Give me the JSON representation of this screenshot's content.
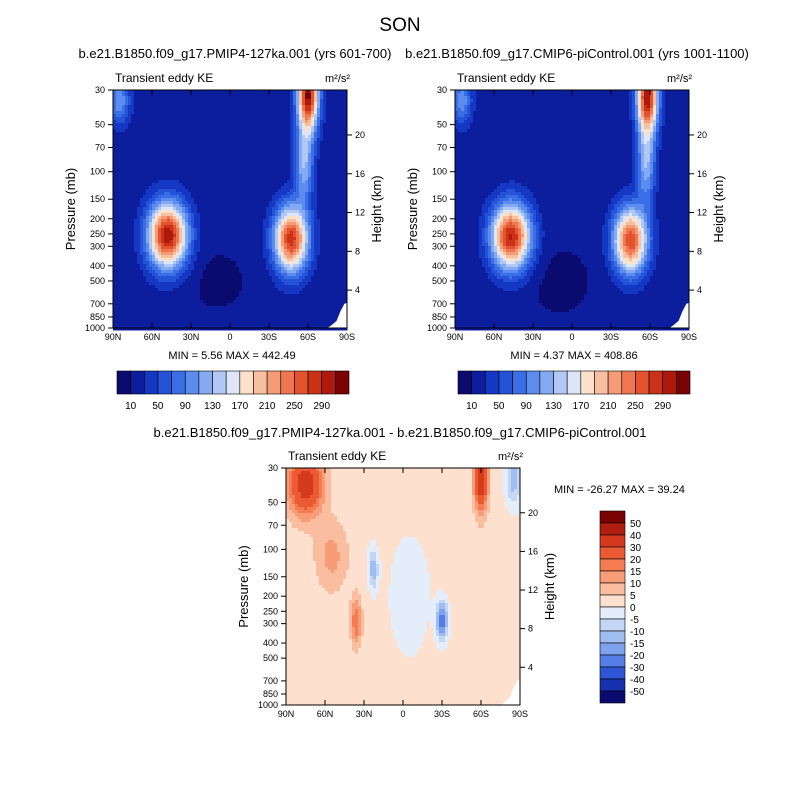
{
  "figure_title": "SON",
  "chart_data": [
    {
      "type": "heatmap",
      "title": "b.e21.B1850.f09_g17.PMIP4-127ka.001 (yrs 601-700)",
      "left_label": "Transient eddy KE",
      "units": "m²/s²",
      "ylabel": "Pressure (mb)",
      "ylabel_right": "Height (km)",
      "x_ticks": [
        "90N",
        "60N",
        "30N",
        "0",
        "30S",
        "60S",
        "90S"
      ],
      "y_ticks": [
        "30",
        "50",
        "70",
        "100",
        "150",
        "200",
        "250",
        "300",
        "400",
        "500",
        "700",
        "850",
        "1000"
      ],
      "height_ticks": [
        "20",
        "16",
        "12",
        "8",
        "4"
      ],
      "x_range": [
        90,
        -90
      ],
      "p_range": [
        30,
        1000
      ],
      "y_scale": "log",
      "stats": "MIN =   5.56  MAX = 442.49",
      "min": 5.56,
      "max": 442.49,
      "features": [
        {
          "lat": 48,
          "p": 255,
          "value": 290
        },
        {
          "lat": -47,
          "p": 270,
          "value": 265
        },
        {
          "lat": -60,
          "p": 32,
          "value": 300
        }
      ]
    },
    {
      "type": "heatmap",
      "title": "b.e21.B1850.f09_g17.CMIP6-piControl.001 (yrs 1001-1100)",
      "left_label": "Transient eddy KE",
      "units": "m²/s²",
      "ylabel": "Pressure (mb)",
      "ylabel_right": "Height (km)",
      "x_ticks": [
        "90N",
        "60N",
        "30N",
        "0",
        "30S",
        "60S",
        "90S"
      ],
      "y_ticks": [
        "30",
        "50",
        "70",
        "100",
        "150",
        "200",
        "250",
        "300",
        "400",
        "500",
        "700",
        "850",
        "1000"
      ],
      "height_ticks": [
        "20",
        "16",
        "12",
        "8",
        "4"
      ],
      "x_range": [
        90,
        -90
      ],
      "p_range": [
        30,
        1000
      ],
      "y_scale": "log",
      "stats": "MIN =   4.37  MAX = 408.86",
      "min": 4.37,
      "max": 408.86,
      "features": [
        {
          "lat": 47,
          "p": 260,
          "value": 280
        },
        {
          "lat": -45,
          "p": 275,
          "value": 255
        },
        {
          "lat": -58,
          "p": 33,
          "value": 290
        }
      ]
    },
    {
      "type": "heatmap",
      "title": "b.e21.B1850.f09_g17.PMIP4-127ka.001 - b.e21.B1850.f09_g17.CMIP6-piControl.001",
      "left_label": "Transient eddy KE",
      "units": "m²/s²",
      "ylabel": "Pressure (mb)",
      "ylabel_right": "Height (km)",
      "x_ticks": [
        "90N",
        "60N",
        "30N",
        "0",
        "30S",
        "60S",
        "90S"
      ],
      "y_ticks": [
        "30",
        "50",
        "70",
        "100",
        "150",
        "200",
        "250",
        "300",
        "400",
        "500",
        "700",
        "850",
        "1000"
      ],
      "height_ticks": [
        "20",
        "16",
        "12",
        "8",
        "4"
      ],
      "x_range": [
        90,
        -90
      ],
      "p_range": [
        30,
        1000
      ],
      "y_scale": "log",
      "stats": "MIN = -26.27  MAX =  39.24",
      "min": -26.27,
      "max": 39.24,
      "features": [
        {
          "lat": 75,
          "p": 38,
          "value": 35
        },
        {
          "lat": -60,
          "p": 35,
          "value": 39
        },
        {
          "lat": 36,
          "p": 290,
          "value": 18
        },
        {
          "lat": -30,
          "p": 285,
          "value": -26
        },
        {
          "lat": 23,
          "p": 135,
          "value": -15
        }
      ]
    }
  ],
  "colorbars": [
    {
      "levels": [
        "10",
        "50",
        "90",
        "130",
        "170",
        "210",
        "250",
        "290"
      ],
      "colors": [
        "#0b0a6f",
        "#0c1e9e",
        "#1538c4",
        "#2553d8",
        "#3a6ee6",
        "#5b8cee",
        "#84aaf2",
        "#b1c8f5",
        "#dde6f7",
        "#fde1cb",
        "#f9c0a0",
        "#f59c77",
        "#ee7650",
        "#e2532e",
        "#cc3218",
        "#ad1a0d",
        "#7a0403"
      ]
    },
    {
      "levels": [
        "10",
        "50",
        "90",
        "130",
        "170",
        "210",
        "250",
        "290"
      ],
      "colors": [
        "#0b0a6f",
        "#0c1e9e",
        "#1538c4",
        "#2553d8",
        "#3a6ee6",
        "#5b8cee",
        "#84aaf2",
        "#b1c8f5",
        "#dde6f7",
        "#fde1cb",
        "#f9c0a0",
        "#f59c77",
        "#ee7650",
        "#e2532e",
        "#cc3218",
        "#ad1a0d",
        "#7a0403"
      ]
    },
    {
      "levels": [
        "50",
        "40",
        "30",
        "20",
        "15",
        "10",
        "5",
        "0",
        "-5",
        "-10",
        "-15",
        "-20",
        "-30",
        "-40",
        "-50"
      ],
      "colors": [
        "#7a0403",
        "#b01e0f",
        "#d63a1e",
        "#ec5a33",
        "#f57b52",
        "#f89c78",
        "#fbbd9f",
        "#fde0cd",
        "#e4edfa",
        "#c4d6f6",
        "#a0bdf2",
        "#7ea2ee",
        "#557ee6",
        "#2f55d6",
        "#1630b0",
        "#0b0a6f"
      ]
    }
  ]
}
